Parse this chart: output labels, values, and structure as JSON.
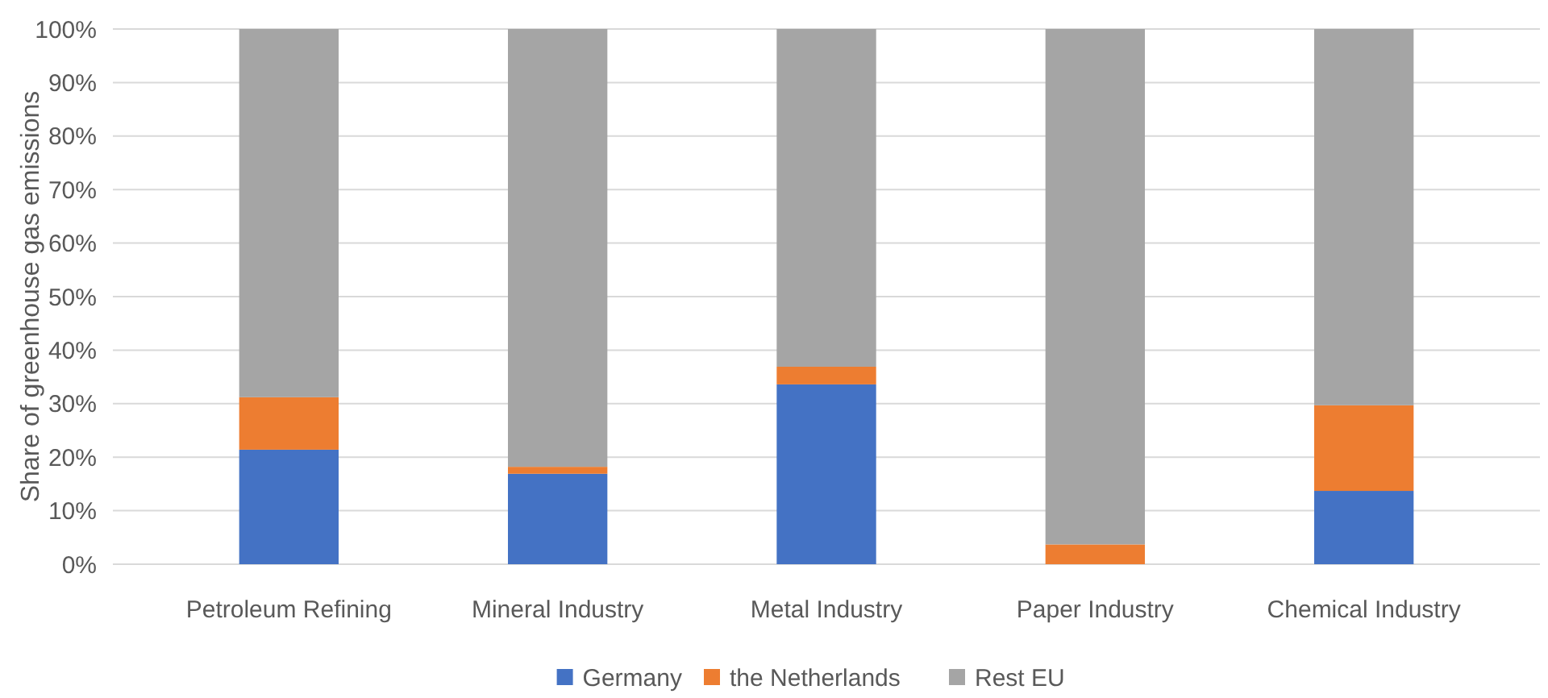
{
  "chart_data": {
    "type": "bar",
    "stacked": true,
    "ylabel": "Share of greenhouse gas emissions",
    "categories": [
      "Petroleum Refining",
      "Mineral Industry",
      "Metal Industry",
      "Paper Industry",
      "Chemical Industry"
    ],
    "series": [
      {
        "name": "Germany",
        "color": "#4472c4",
        "values": [
          21.4,
          16.9,
          33.6,
          0,
          13.7
        ]
      },
      {
        "name": "the Netherlands",
        "color": "#ed7d31",
        "values": [
          9.8,
          1.3,
          3.3,
          3.7,
          16.0
        ]
      },
      {
        "name": "Rest EU",
        "color": "#a5a5a5",
        "values": [
          68.8,
          81.8,
          63.1,
          96.3,
          70.3
        ]
      }
    ],
    "ylim": [
      0,
      100
    ],
    "yticks": [
      {
        "value": 0,
        "label": "0%"
      },
      {
        "value": 10,
        "label": "10%"
      },
      {
        "value": 20,
        "label": "20%"
      },
      {
        "value": 30,
        "label": "30%"
      },
      {
        "value": 40,
        "label": "40%"
      },
      {
        "value": 50,
        "label": "50%"
      },
      {
        "value": 60,
        "label": "60%"
      },
      {
        "value": 70,
        "label": "70%"
      },
      {
        "value": 80,
        "label": "80%"
      },
      {
        "value": 90,
        "label": "90%"
      },
      {
        "value": 100,
        "label": "100%"
      }
    ],
    "grid": "y",
    "legend": "bottom"
  }
}
